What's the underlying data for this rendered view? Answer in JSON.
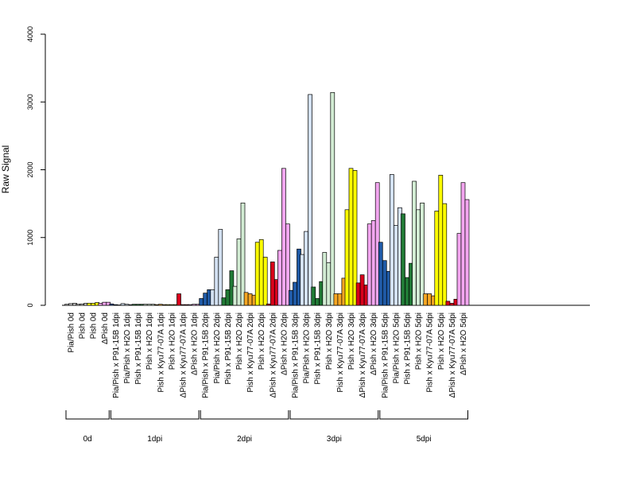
{
  "chart_data": {
    "type": "bar",
    "ylabel": "Raw Signal",
    "ylim": [
      0,
      4000
    ],
    "yticks": [
      0,
      1000,
      2000,
      3000,
      4000
    ],
    "grid": false,
    "legend": "none",
    "bar_border_color": "#000000",
    "categories": [
      "Pia/Pish 0d",
      "Pish 0d",
      "Pish 0d",
      "ΔPish 0d",
      "Pia/Pish x P91-15B 1dpi",
      "Pia/Pish x H2O 1dpi",
      "Pish x P91-15B 1dpi",
      "Pish x H2O 1dpi",
      "Pish x Kyu77-07A 1dpi",
      "Pish x H2O 1dpi",
      "ΔPish x Kyu77-07A 1dpi",
      "ΔPish x H2O 1dpi",
      "Pia/Pish x P91-15B 2dpi",
      "Pia/Pish x H2O 2dpi",
      "Pish x P91-15B 2dpi",
      "Pish x H2O 2dpi",
      "Pish x Kyu77-07A 2dpi",
      "Pish x H2O 2dpi",
      "ΔPish x Kyu77-07A 2dpi",
      "ΔPish x H2O 2dpi",
      "Pia/Pish x P91-15B 3dpi",
      "Pia/Pish x H2O 3dpi",
      "Pish x P91-15B 3dpi",
      "Pish x H2O 3dpi",
      "Pish x Kyu77-07A 3dpi",
      "Pish x H2O 3dpi",
      "ΔPish x Kyu77-07A 3dpi",
      "ΔPish x H2O 3dpi",
      "Pia/Pish x P91-15B 5dpi",
      "Pia/Pish x H2O 5dpi",
      "Pish x P91-15B 5dpi",
      "Pish x H2O 5dpi",
      "Pish x Kyu77-07A 5dpi",
      "Pish x H2O 5dpi",
      "ΔPish x Kyu77-07A 5dpi",
      "ΔPish x H2O 5dpi"
    ],
    "color_keys": [
      "light_gray",
      "light_gray",
      "yellow",
      "violet",
      "dark_blue",
      "light_blue",
      "dark_green",
      "light_green",
      "orange",
      "yellow",
      "red",
      "violet",
      "dark_blue",
      "light_blue",
      "dark_green",
      "light_green",
      "orange",
      "yellow",
      "red",
      "violet",
      "dark_blue",
      "light_blue",
      "dark_green",
      "light_green",
      "orange",
      "yellow",
      "red",
      "violet",
      "dark_blue",
      "light_blue",
      "dark_green",
      "light_green",
      "orange",
      "yellow",
      "red",
      "violet"
    ],
    "colors": {
      "light_gray": "#c8c8c8",
      "dark_blue": "#1f5aa6",
      "light_blue": "#d3e1f2",
      "dark_green": "#217a36",
      "light_green": "#d2ecd3",
      "orange": "#f5a623",
      "yellow": "#ffff00",
      "red": "#d9001b",
      "violet": "#f3a6f0"
    },
    "values": [
      [
        15,
        25,
        30
      ],
      [
        15,
        20,
        30
      ],
      [
        30,
        30,
        40
      ],
      [
        30,
        45,
        45
      ],
      [
        20,
        10,
        5
      ],
      [
        25,
        15,
        10
      ],
      [
        15,
        15,
        15
      ],
      [
        15,
        15,
        15
      ],
      [
        10,
        15,
        10
      ],
      [
        10,
        10,
        10
      ],
      [
        170,
        10,
        10
      ],
      [
        10,
        15,
        15
      ],
      [
        100,
        180,
        230
      ],
      [
        230,
        710,
        1120
      ],
      [
        110,
        230,
        510
      ],
      [
        280,
        980,
        1510
      ],
      [
        190,
        170,
        150
      ],
      [
        930,
        970,
        710
      ],
      [
        20,
        640,
        380
      ],
      [
        810,
        2020,
        1200
      ],
      [
        220,
        340,
        830
      ],
      [
        750,
        1090,
        3110
      ],
      [
        270,
        100,
        350
      ],
      [
        780,
        630,
        3140
      ],
      [
        170,
        170,
        400
      ],
      [
        1410,
        2020,
        1990
      ],
      [
        330,
        450,
        300
      ],
      [
        1200,
        1250,
        1810
      ],
      [
        930,
        660,
        500
      ],
      [
        1930,
        1180,
        1440
      ],
      [
        1350,
        410,
        620
      ],
      [
        1830,
        1410,
        1510
      ],
      [
        170,
        170,
        140
      ],
      [
        1390,
        1920,
        1500
      ],
      [
        60,
        30,
        90
      ],
      [
        1060,
        1810,
        1560
      ]
    ],
    "groups": [
      {
        "label": "0d",
        "first": 0,
        "last": 3
      },
      {
        "label": "1dpi",
        "first": 4,
        "last": 11
      },
      {
        "label": "2dpi",
        "first": 12,
        "last": 19
      },
      {
        "label": "3dpi",
        "first": 20,
        "last": 27
      },
      {
        "label": "5dpi",
        "first": 28,
        "last": 35
      }
    ]
  }
}
